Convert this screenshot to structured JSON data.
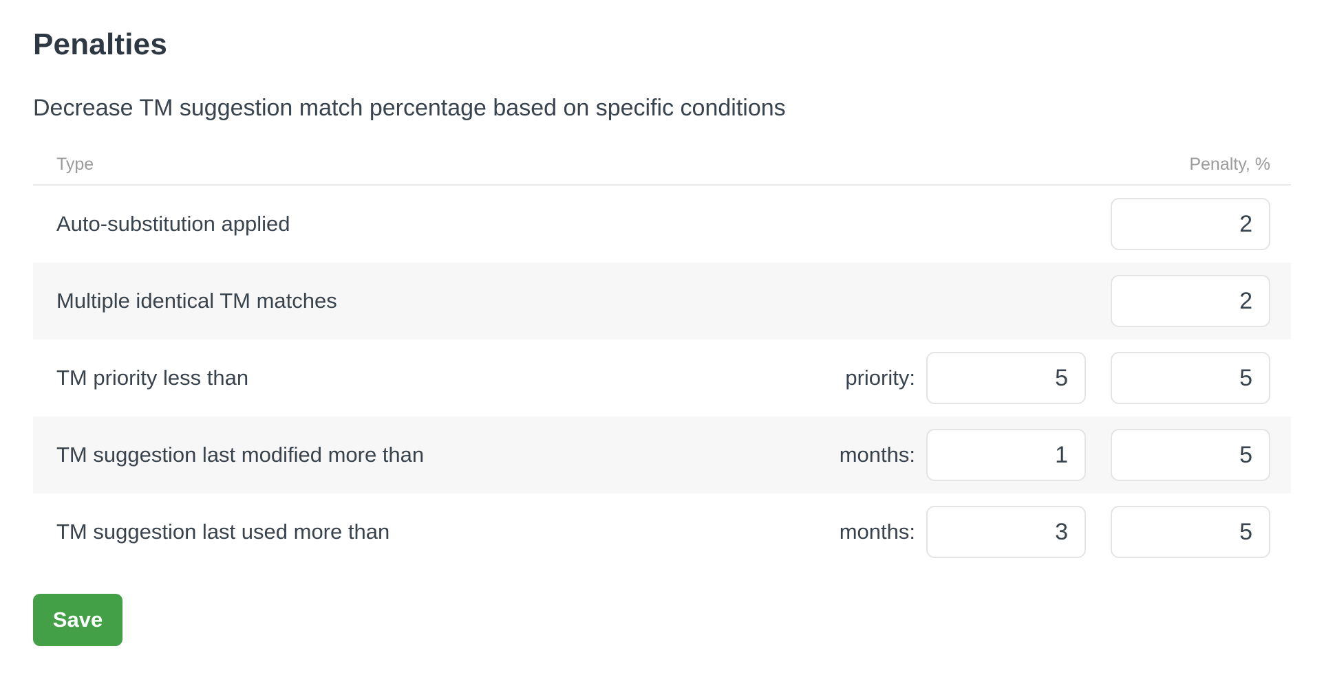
{
  "page": {
    "title": "Penalties",
    "subtitle": "Decrease TM suggestion match percentage based on specific conditions"
  },
  "table": {
    "headers": {
      "type": "Type",
      "penalty": "Penalty, %"
    },
    "rows": [
      {
        "type": "Auto-substitution applied",
        "penalty": "2"
      },
      {
        "type": "Multiple identical TM matches",
        "penalty": "2"
      },
      {
        "type": "TM priority less than",
        "condition_label": "priority:",
        "condition_value": "5",
        "penalty": "5"
      },
      {
        "type": "TM suggestion last modified more than",
        "condition_label": "months:",
        "condition_value": "1",
        "penalty": "5"
      },
      {
        "type": "TM suggestion last used more than",
        "condition_label": "months:",
        "condition_value": "3",
        "penalty": "5"
      }
    ]
  },
  "actions": {
    "save_label": "Save"
  },
  "colors": {
    "accent_green": "#43a047",
    "title_dark": "#2e3842",
    "text_dark": "#39434d",
    "muted_header": "#9b9b9b",
    "stripe": "#f7f7f7",
    "divider": "#e9e9e9",
    "input_border": "#e4e4e4"
  }
}
